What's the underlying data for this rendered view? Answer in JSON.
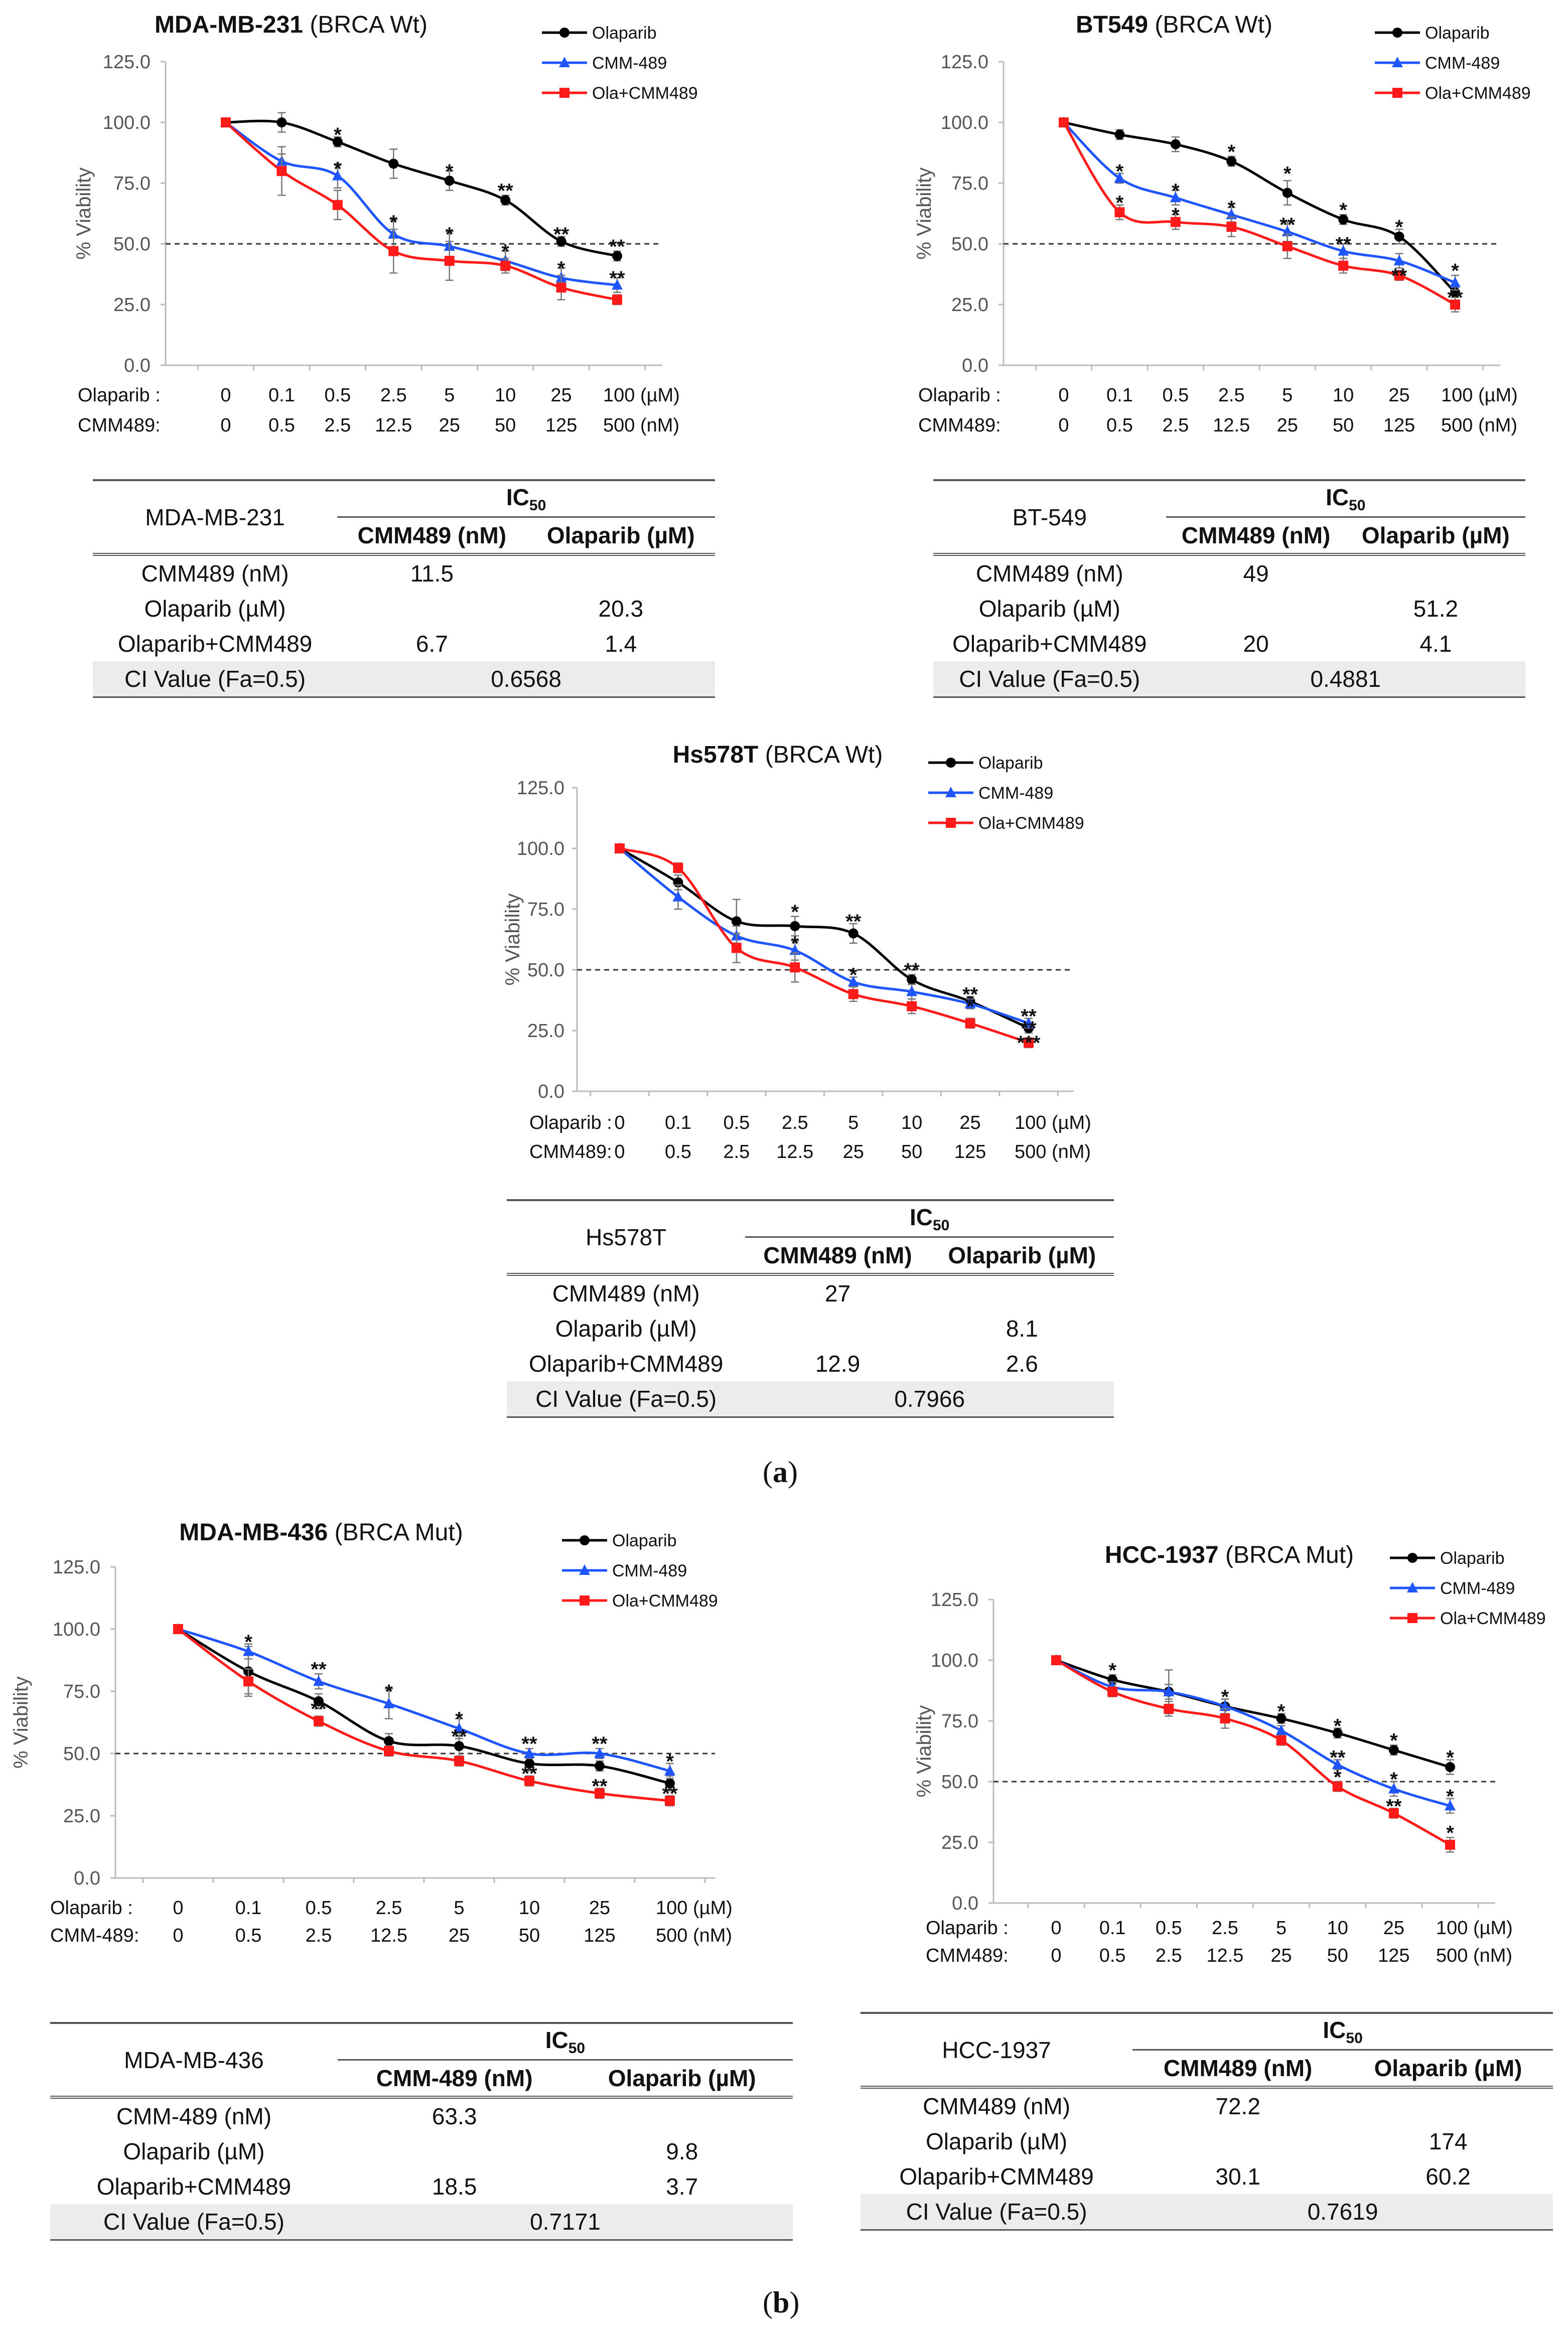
{
  "colors": {
    "olaparib": "#000000",
    "cmm": "#1f55ff",
    "combo": "#ff1a1a",
    "ci_row": "#ececec"
  },
  "panel_labels": {
    "a": "(a)",
    "b": "(b)",
    "a_open": "(",
    "a_letter": "a",
    "a_close": ")",
    "b_open": "(",
    "b_letter": "b",
    "b_close": ")"
  },
  "chart_data": [
    {
      "type": "line",
      "title_bold": "MDA-MB-231",
      "title_rest": " (BRCA Wt)",
      "ylabel": "% Viability",
      "yticks": [
        "0.0",
        "25.0",
        "50.0",
        "75.0",
        "100.0",
        "125.0"
      ],
      "ylim": [
        0,
        125
      ],
      "threshold": 50,
      "row1_label": "Olaparib  :",
      "row2_label": "CMM489:",
      "olaparib_doses": [
        "0",
        "0.1",
        "0.5",
        "2.5",
        "5",
        "10",
        "25",
        "100 (µM)"
      ],
      "cmm_doses": [
        "0",
        "0.5",
        "2.5",
        "12.5",
        "25",
        "50",
        "125",
        "500 (nM)"
      ],
      "legend": [
        "Olaparib",
        "CMM-489",
        "Ola+CMM489"
      ],
      "series": [
        {
          "name": "Olaparib",
          "values": [
            100,
            100,
            92,
            83,
            76,
            68,
            51,
            45
          ],
          "err": [
            0,
            4,
            2,
            6,
            4,
            2,
            2,
            2
          ]
        },
        {
          "name": "CMM-489",
          "values": [
            100,
            84,
            78,
            54,
            49,
            43,
            36,
            33
          ],
          "err": [
            0,
            3,
            5,
            6,
            6,
            4,
            4,
            3
          ]
        },
        {
          "name": "Ola+CMM489",
          "values": [
            100,
            80,
            66,
            47,
            43,
            41,
            32,
            27
          ],
          "err": [
            0,
            10,
            6,
            9,
            8,
            3,
            5,
            2
          ]
        }
      ],
      "annotations": [
        {
          "i": 2,
          "y": 95,
          "t": "*"
        },
        {
          "i": 4,
          "y": 80,
          "t": "*"
        },
        {
          "i": 5,
          "y": 72,
          "t": "**"
        },
        {
          "i": 7,
          "y": 49,
          "t": "**"
        },
        {
          "i": 2,
          "y": 81,
          "t": "*"
        },
        {
          "i": 3,
          "y": 59,
          "t": "*"
        },
        {
          "i": 4,
          "y": 54,
          "t": "*"
        },
        {
          "i": 5,
          "y": 47,
          "t": "*"
        },
        {
          "i": 6,
          "y": 54,
          "t": "**"
        },
        {
          "i": 6,
          "y": 40,
          "t": "*"
        },
        {
          "i": 7,
          "y": 36,
          "t": "**"
        }
      ],
      "table": {
        "name": "MDA-MB-231",
        "ic_label": "IC",
        "ic_sub": "50",
        "col1": "CMM489 (nM)",
        "col2": "Olaparib (µM)",
        "rows": [
          {
            "label": "CMM489 (nM)",
            "c1": "11.5",
            "c2": ""
          },
          {
            "label": "Olaparib (µM)",
            "c1": "",
            "c2": "20.3"
          },
          {
            "label": "Olaparib+CMM489",
            "c1": "6.7",
            "c2": "1.4"
          }
        ],
        "ci_label": "CI Value (Fa=0.5)",
        "ci_value": "0.6568"
      }
    },
    {
      "type": "line",
      "title_bold": "BT549",
      "title_rest": " (BRCA Wt)",
      "ylabel": "% Viability",
      "yticks": [
        "0.0",
        "25.0",
        "50.0",
        "75.0",
        "100.0",
        "125.0"
      ],
      "ylim": [
        0,
        125
      ],
      "threshold": 50,
      "row1_label": "Olaparib  :",
      "row2_label": "CMM489:",
      "olaparib_doses": [
        "0",
        "0.1",
        "0.5",
        "2.5",
        "5",
        "10",
        "25",
        "100 (µM)"
      ],
      "cmm_doses": [
        "0",
        "0.5",
        "2.5",
        "12.5",
        "25",
        "50",
        "125",
        "500 (nM)"
      ],
      "legend": [
        "Olaparib",
        "CMM-489",
        "Ola+CMM489"
      ],
      "series": [
        {
          "name": "Olaparib",
          "values": [
            100,
            95,
            91,
            84,
            71,
            60,
            53,
            30
          ],
          "err": [
            0,
            2,
            3,
            2,
            5,
            2,
            3,
            2
          ]
        },
        {
          "name": "CMM-489",
          "values": [
            100,
            77,
            69,
            62,
            55,
            47,
            43,
            34
          ],
          "err": [
            0,
            2,
            3,
            3,
            4,
            3,
            3,
            3
          ]
        },
        {
          "name": "Ola+CMM489",
          "values": [
            100,
            63,
            59,
            57,
            49,
            41,
            37,
            25
          ],
          "err": [
            0,
            3,
            3,
            4,
            5,
            3,
            2,
            3
          ]
        }
      ],
      "annotations": [
        {
          "i": 3,
          "y": 88,
          "t": "*"
        },
        {
          "i": 4,
          "y": 79,
          "t": "*"
        },
        {
          "i": 5,
          "y": 64,
          "t": "*"
        },
        {
          "i": 6,
          "y": 57,
          "t": "*"
        },
        {
          "i": 7,
          "y": 39,
          "t": "*"
        },
        {
          "i": 1,
          "y": 80,
          "t": "*"
        },
        {
          "i": 2,
          "y": 72,
          "t": "*"
        },
        {
          "i": 3,
          "y": 65,
          "t": "*"
        },
        {
          "i": 4,
          "y": 58,
          "t": "**"
        },
        {
          "i": 5,
          "y": 50,
          "t": "**"
        },
        {
          "i": 6,
          "y": 37,
          "t": "**"
        },
        {
          "i": 1,
          "y": 67,
          "t": "*"
        },
        {
          "i": 2,
          "y": 62,
          "t": "*"
        },
        {
          "i": 7,
          "y": 28,
          "t": "**"
        }
      ],
      "table": {
        "name": "BT-549",
        "ic_label": "IC",
        "ic_sub": "50",
        "col1": "CMM489 (nM)",
        "col2": "Olaparib (µM)",
        "rows": [
          {
            "label": "CMM489 (nM)",
            "c1": "49",
            "c2": ""
          },
          {
            "label": "Olaparib (µM)",
            "c1": "",
            "c2": "51.2"
          },
          {
            "label": "Olaparib+CMM489",
            "c1": "20",
            "c2": "4.1"
          }
        ],
        "ci_label": "CI Value (Fa=0.5)",
        "ci_value": "0.4881"
      }
    },
    {
      "type": "line",
      "title_bold": "Hs578T",
      "title_rest": " (BRCA Wt)",
      "ylabel": "% Viability",
      "yticks": [
        "0.0",
        "25.0",
        "50.0",
        "75.0",
        "100.0",
        "125.0"
      ],
      "ylim": [
        0,
        125
      ],
      "threshold": 50,
      "row1_label": "Olaparib  :",
      "row2_label": "CMM489:",
      "olaparib_doses": [
        "0",
        "0.1",
        "0.5",
        "2.5",
        "5",
        "10",
        "25",
        "100 (µM)"
      ],
      "cmm_doses": [
        "0",
        "0.5",
        "2.5",
        "12.5",
        "25",
        "50",
        "125",
        "500 (nM)"
      ],
      "legend": [
        "Olaparib",
        "CMM-489",
        "Ola+CMM489"
      ],
      "series": [
        {
          "name": "Olaparib",
          "values": [
            100,
            86,
            70,
            68,
            65,
            46,
            37,
            26
          ],
          "err": [
            0,
            3,
            9,
            4,
            4,
            2,
            2,
            2
          ]
        },
        {
          "name": "CMM-489",
          "values": [
            100,
            80,
            64,
            58,
            45,
            41,
            36,
            28
          ],
          "err": [
            0,
            5,
            4,
            4,
            2,
            3,
            2,
            2
          ]
        },
        {
          "name": "Ola+CMM489",
          "values": [
            100,
            92,
            59,
            51,
            40,
            35,
            28,
            20
          ],
          "err": [
            0,
            2,
            6,
            6,
            3,
            3,
            2,
            2
          ]
        }
      ],
      "annotations": [
        {
          "i": 3,
          "y": 74,
          "t": "*"
        },
        {
          "i": 4,
          "y": 70,
          "t": "**"
        },
        {
          "i": 5,
          "y": 50,
          "t": "**"
        },
        {
          "i": 6,
          "y": 40,
          "t": "**"
        },
        {
          "i": 7,
          "y": 31,
          "t": "**"
        },
        {
          "i": 3,
          "y": 61,
          "t": "*"
        },
        {
          "i": 4,
          "y": 48,
          "t": "*"
        },
        {
          "i": 6,
          "y": 35,
          "t": "*"
        },
        {
          "i": 7,
          "y": 26,
          "t": "**"
        },
        {
          "i": 7,
          "y": 20,
          "t": "***"
        }
      ],
      "table": {
        "name": "Hs578T",
        "ic_label": "IC",
        "ic_sub": "50",
        "col1": "CMM489 (nM)",
        "col2": "Olaparib (µM)",
        "rows": [
          {
            "label": "CMM489 (nM)",
            "c1": "27",
            "c2": ""
          },
          {
            "label": "Olaparib (µM)",
            "c1": "",
            "c2": "8.1"
          },
          {
            "label": "Olaparib+CMM489",
            "c1": "12.9",
            "c2": "2.6"
          }
        ],
        "ci_label": "CI Value (Fa=0.5)",
        "ci_value": "0.7966"
      }
    },
    {
      "type": "line",
      "title_bold": "MDA-MB-436",
      "title_rest": " (BRCA Mut)",
      "ylabel": "% Viability",
      "yticks": [
        "0.0",
        "25.0",
        "50.0",
        "75.0",
        "100.0",
        "125.0"
      ],
      "ylim": [
        0,
        125
      ],
      "threshold": 50,
      "row1_label": "Olaparib  :",
      "row2_label": "CMM-489:",
      "olaparib_doses": [
        "0",
        "0.1",
        "0.5",
        "2.5",
        "5",
        "10",
        "25",
        "100 (µM)"
      ],
      "cmm_doses": [
        "0",
        "0.5",
        "2.5",
        "12.5",
        "25",
        "50",
        "125",
        "500 (nM)"
      ],
      "legend": [
        "Olaparib",
        "CMM-489",
        "Ola+CMM489"
      ],
      "series": [
        {
          "name": "Olaparib",
          "values": [
            100,
            83,
            71,
            55,
            53,
            46,
            45,
            38
          ],
          "err": [
            0,
            10,
            3,
            3,
            4,
            3,
            2,
            3
          ]
        },
        {
          "name": "CMM-489",
          "values": [
            100,
            91,
            79,
            70,
            60,
            50,
            50,
            43
          ],
          "err": [
            0,
            3,
            3,
            6,
            4,
            2,
            2,
            3
          ]
        },
        {
          "name": "Ola+CMM489",
          "values": [
            100,
            79,
            63,
            51,
            47,
            39,
            34,
            31
          ],
          "err": [
            0,
            5,
            2,
            2,
            2,
            2,
            2,
            2
          ]
        }
      ],
      "annotations": [
        {
          "i": 1,
          "y": 95,
          "t": "*"
        },
        {
          "i": 2,
          "y": 84,
          "t": "**"
        },
        {
          "i": 3,
          "y": 75,
          "t": "*"
        },
        {
          "i": 4,
          "y": 64,
          "t": "*"
        },
        {
          "i": 5,
          "y": 54,
          "t": "**"
        },
        {
          "i": 6,
          "y": 54,
          "t": "**"
        },
        {
          "i": 7,
          "y": 47,
          "t": "*"
        },
        {
          "i": 2,
          "y": 68,
          "t": "**"
        },
        {
          "i": 4,
          "y": 57,
          "t": "**"
        },
        {
          "i": 5,
          "y": 42,
          "t": "**"
        },
        {
          "i": 6,
          "y": 37,
          "t": "**"
        },
        {
          "i": 7,
          "y": 34,
          "t": "**"
        }
      ],
      "table": {
        "name": "MDA-MB-436",
        "ic_label": "IC",
        "ic_sub": "50",
        "col1": "CMM-489 (nM)",
        "col2": "Olaparib (µM)",
        "rows": [
          {
            "label": "CMM-489 (nM)",
            "c1": "63.3",
            "c2": ""
          },
          {
            "label": "Olaparib (µM)",
            "c1": "",
            "c2": "9.8"
          },
          {
            "label": "Olaparib+CMM489",
            "c1": "18.5",
            "c2": "3.7"
          }
        ],
        "ci_label": "CI Value (Fa=0.5)",
        "ci_value": "0.7171"
      }
    },
    {
      "type": "line",
      "title_bold": "HCC-1937",
      "title_rest": " (BRCA Mut)",
      "ylabel": "% Viability",
      "yticks": [
        "0.0",
        "25.0",
        "50.0",
        "75.0",
        "100.0",
        "125.0"
      ],
      "ylim": [
        0,
        125
      ],
      "threshold": 50,
      "row1_label": "Olaparib  :",
      "row2_label": "CMM489:",
      "olaparib_doses": [
        "0",
        "0.1",
        "0.5",
        "2.5",
        "5",
        "10",
        "25",
        "100 (µM)"
      ],
      "cmm_doses": [
        "0",
        "0.5",
        "2.5",
        "12.5",
        "25",
        "50",
        "125",
        "500 (nM)"
      ],
      "legend": [
        "Olaparib",
        "CMM-489",
        "Ola+CMM489"
      ],
      "series": [
        {
          "name": "Olaparib",
          "values": [
            100,
            92,
            87,
            81,
            76,
            70,
            63,
            56
          ],
          "err": [
            0,
            2,
            9,
            3,
            2,
            2,
            2,
            3
          ]
        },
        {
          "name": "CMM-489",
          "values": [
            100,
            89,
            87,
            81,
            71,
            57,
            47,
            40
          ],
          "err": [
            0,
            2,
            3,
            3,
            2,
            2,
            3,
            3
          ]
        },
        {
          "name": "Ola+CMM489",
          "values": [
            100,
            87,
            80,
            76,
            67,
            48,
            37,
            24
          ],
          "err": [
            0,
            2,
            3,
            4,
            2,
            2,
            2,
            3
          ]
        }
      ],
      "annotations": [
        {
          "i": 1,
          "y": 96,
          "t": "*"
        },
        {
          "i": 3,
          "y": 85,
          "t": "*"
        },
        {
          "i": 4,
          "y": 79,
          "t": "*"
        },
        {
          "i": 5,
          "y": 73,
          "t": "*"
        },
        {
          "i": 6,
          "y": 67,
          "t": "*"
        },
        {
          "i": 7,
          "y": 60,
          "t": "*"
        },
        {
          "i": 5,
          "y": 60,
          "t": "**"
        },
        {
          "i": 6,
          "y": 51,
          "t": "*"
        },
        {
          "i": 7,
          "y": 44,
          "t": "*"
        },
        {
          "i": 5,
          "y": 52,
          "t": "*"
        },
        {
          "i": 6,
          "y": 40,
          "t": "**"
        },
        {
          "i": 7,
          "y": 29,
          "t": "*"
        }
      ],
      "table": {
        "name": "HCC-1937",
        "ic_label": "IC",
        "ic_sub": "50",
        "col1": "CMM489 (nM)",
        "col2": "Olaparib (µM)",
        "rows": [
          {
            "label": "CMM489 (nM)",
            "c1": "72.2",
            "c2": ""
          },
          {
            "label": "Olaparib (µM)",
            "c1": "",
            "c2": "174"
          },
          {
            "label": "Olaparib+CMM489",
            "c1": "30.1",
            "c2": "60.2"
          }
        ],
        "ci_label": "CI Value (Fa=0.5)",
        "ci_value": "0.7619"
      }
    }
  ]
}
